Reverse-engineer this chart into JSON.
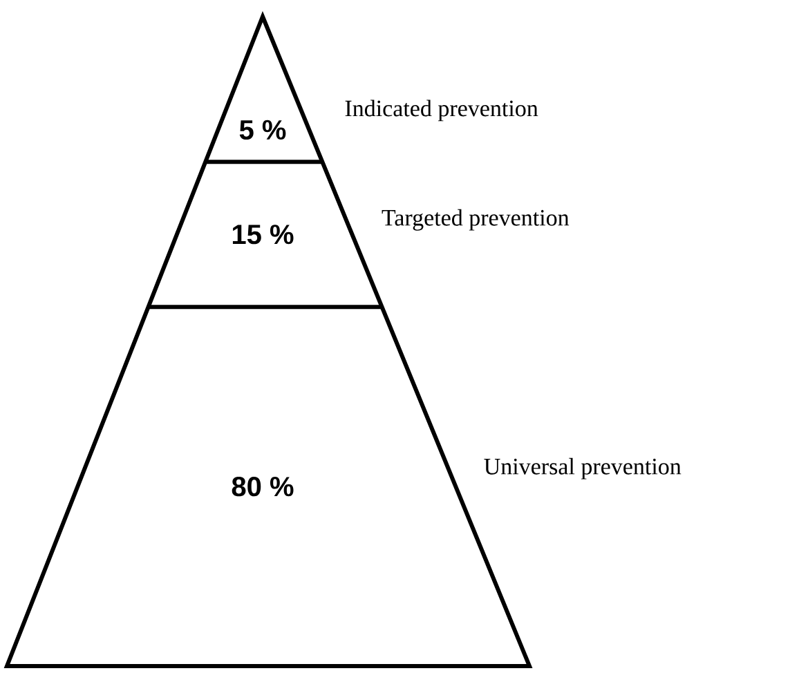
{
  "chart_data": {
    "type": "other",
    "categories": [
      "Indicated prevention",
      "Targeted prevention",
      "Universal prevention"
    ],
    "values": [
      5,
      15,
      80
    ],
    "value_labels": [
      "5 %",
      "15 %",
      "80 %"
    ]
  }
}
